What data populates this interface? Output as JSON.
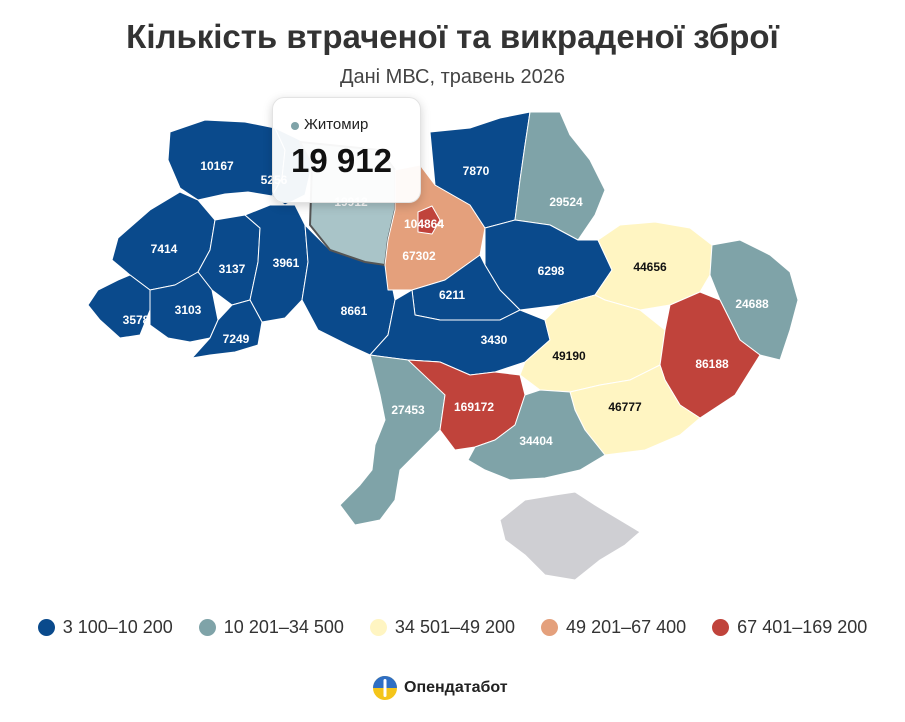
{
  "header": {
    "title": "Кількість втраченої та викраденої зброї",
    "subtitle": "Дані МВС, травень 2026"
  },
  "colors": {
    "bin1": "#0a4a8c",
    "bin2": "#7fa3a8",
    "bin3": "#fff5c2",
    "bin4": "#e4a07c",
    "bin5": "#c0433b",
    "no_data": "#cfcfd3",
    "highlight": "#a9c4c8"
  },
  "legend": [
    {
      "label": "3 100–10 200",
      "color": "#0a4a8c"
    },
    {
      "label": "10 201–34 500",
      "color": "#7fa3a8"
    },
    {
      "label": "34 501–49 200",
      "color": "#fff5c2"
    },
    {
      "label": "49 201–67 400",
      "color": "#e4a07c"
    },
    {
      "label": "67 401–169 200",
      "color": "#c0433b"
    }
  ],
  "regions": [
    {
      "id": "volyn",
      "value": "10167"
    },
    {
      "id": "rivne",
      "value": "5256"
    },
    {
      "id": "lviv",
      "value": "7414"
    },
    {
      "id": "ternopil",
      "value": "3137"
    },
    {
      "id": "khmelnytskyi",
      "value": "3961"
    },
    {
      "id": "zakarpattia",
      "value": "3578"
    },
    {
      "id": "ivano-frankivsk",
      "value": "3103"
    },
    {
      "id": "chernivtsi",
      "value": "7249"
    },
    {
      "id": "vinnytsia",
      "value": "8661"
    },
    {
      "id": "zhytomyr",
      "value": "19912"
    },
    {
      "id": "kyiv-oblast",
      "value": "67302"
    },
    {
      "id": "kyiv-city",
      "value": "104864"
    },
    {
      "id": "chernihiv",
      "value": "7870"
    },
    {
      "id": "sumy",
      "value": "29524"
    },
    {
      "id": "poltava",
      "value": "6298"
    },
    {
      "id": "cherkasy",
      "value": "6211"
    },
    {
      "id": "kirovohrad",
      "value": "3430"
    },
    {
      "id": "kharkiv",
      "value": "44656"
    },
    {
      "id": "luhansk",
      "value": "24688"
    },
    {
      "id": "dnipropetrovsk",
      "value": "49190"
    },
    {
      "id": "donetsk",
      "value": "86188"
    },
    {
      "id": "zaporizhzhia",
      "value": "46777"
    },
    {
      "id": "odesa",
      "value": "27453"
    },
    {
      "id": "mykolaiv",
      "value": "169172"
    },
    {
      "id": "kherson",
      "value": "34404"
    },
    {
      "id": "crimea",
      "value": ""
    }
  ],
  "tooltip": {
    "region": "Житомир",
    "value": "19 912",
    "color": "#7fa3a8"
  },
  "brand": {
    "name": "Опендатабот"
  }
}
